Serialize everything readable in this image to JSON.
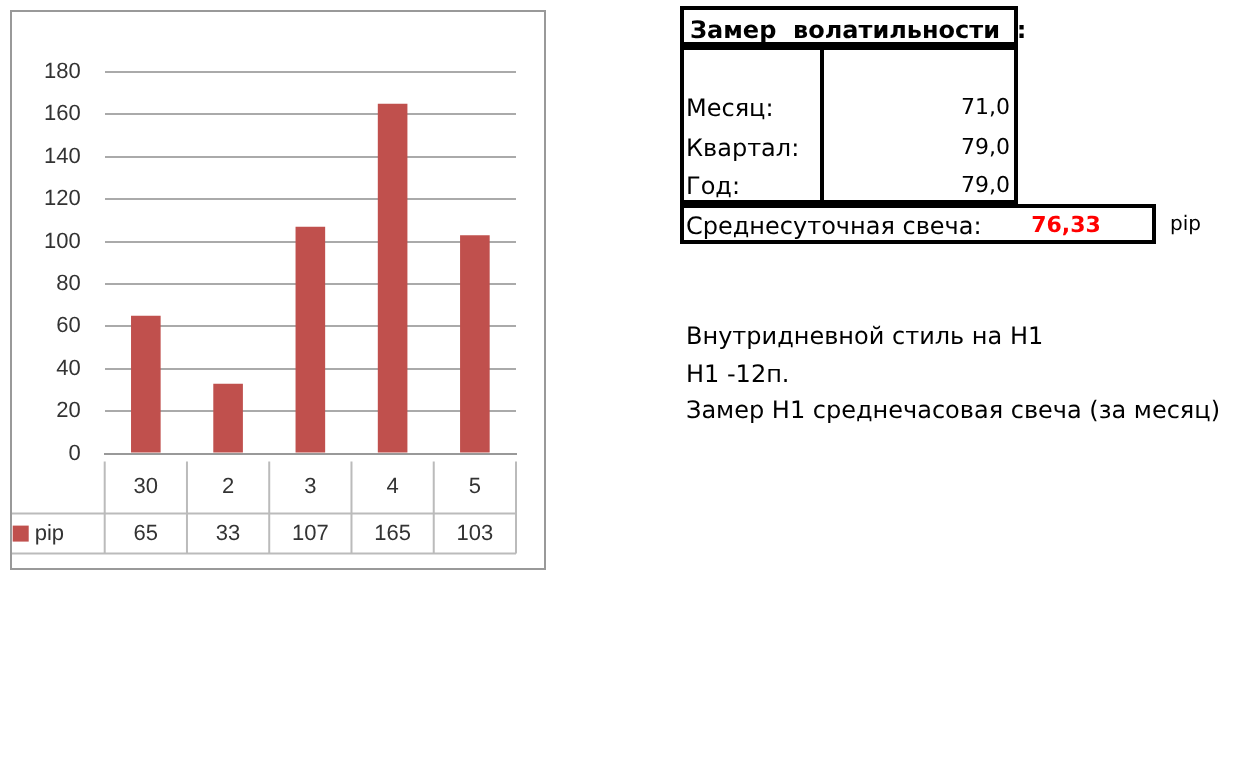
{
  "chart_data": {
    "type": "bar",
    "categories": [
      "30",
      "2",
      "3",
      "4",
      "5"
    ],
    "series": [
      {
        "name": "pip",
        "color": "#c0504d",
        "values": [
          65,
          33,
          107,
          165,
          103
        ]
      }
    ],
    "ylim": [
      0,
      180
    ],
    "yticks": [
      0,
      20,
      40,
      60,
      80,
      100,
      120,
      140,
      160,
      180
    ],
    "grid": "y",
    "legend": "bottom",
    "data_labels": true,
    "annotations": [
      "Замер  волатильности  :",
      "Месяц:",
      "71,0",
      "Квартал:",
      "79,0",
      "Год:",
      "79,0",
      "Среднесуточная свеча:",
      "76,33",
      "pip",
      "Внутридневной стиль на H1",
      "H1 -12п.",
      "Замер H1 среднечасовая свеча (за месяц)"
    ]
  }
}
